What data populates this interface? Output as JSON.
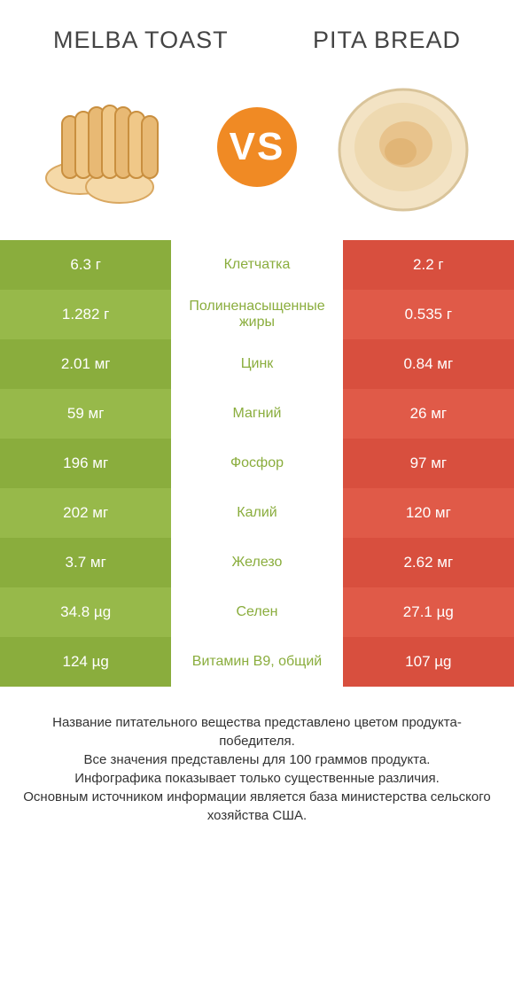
{
  "header": {
    "left_title": "MELBA TOAST",
    "right_title": "PITA BREAD"
  },
  "vs": {
    "label": "VS",
    "bg_color": "#f08a24",
    "text_color": "#ffffff"
  },
  "colors": {
    "left_col": "#8aad3d",
    "left_col_alt": "#97b94a",
    "right_col": "#d84f3e",
    "right_col_alt": "#e05a48",
    "mid_text_winner_left": "#8aad3d",
    "mid_text_winner_right": "#d84f3e",
    "title_text": "#444444",
    "footer_text": "#333333"
  },
  "rows": [
    {
      "left": "6.3 г",
      "label": "Клетчатка",
      "right": "2.2 г",
      "winner": "left"
    },
    {
      "left": "1.282 г",
      "label": "Полиненасыщенные жиры",
      "right": "0.535 г",
      "winner": "left"
    },
    {
      "left": "2.01 мг",
      "label": "Цинк",
      "right": "0.84 мг",
      "winner": "left"
    },
    {
      "left": "59 мг",
      "label": "Магний",
      "right": "26 мг",
      "winner": "left"
    },
    {
      "left": "196 мг",
      "label": "Фосфор",
      "right": "97 мг",
      "winner": "left"
    },
    {
      "left": "202 мг",
      "label": "Калий",
      "right": "120 мг",
      "winner": "left"
    },
    {
      "left": "3.7 мг",
      "label": "Железо",
      "right": "2.62 мг",
      "winner": "left"
    },
    {
      "left": "34.8 µg",
      "label": "Селен",
      "right": "27.1 µg",
      "winner": "left"
    },
    {
      "left": "124 µg",
      "label": "Витамин B9, общий",
      "right": "107 µg",
      "winner": "left"
    }
  ],
  "footer": {
    "line1": "Название питательного вещества представлено цветом продукта-победителя.",
    "line2": "Все значения представлены для 100 граммов продукта.",
    "line3": "Инфографика показывает только существенные различия.",
    "line4": "Основным источником информации является база министерства сельского хозяйства США."
  },
  "icons": {
    "left_food": "melba-toast-icon",
    "right_food": "pita-bread-icon"
  }
}
